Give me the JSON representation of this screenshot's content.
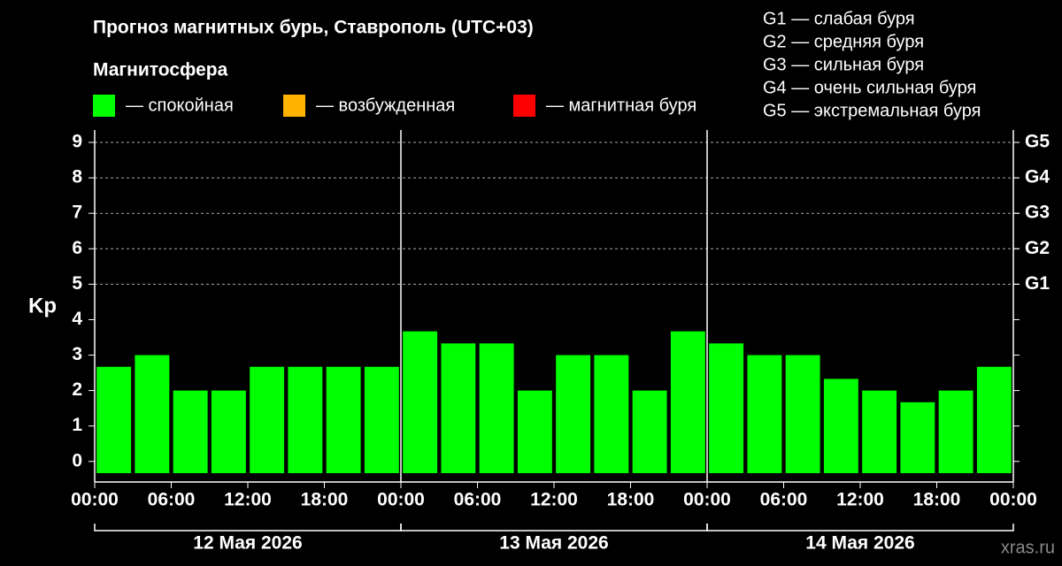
{
  "chart_data": {
    "type": "bar",
    "title": "Прогноз магнитных бурь, Ставрополь (UTC+03)",
    "subtitle": "Магнитосфера",
    "legend": [
      {
        "label": "— спокойная",
        "color": "#00ff00"
      },
      {
        "label": "— возбужденная",
        "color": "#ffb300"
      },
      {
        "label": "— магнитная буря",
        "color": "#ff0000"
      }
    ],
    "storm_levels": [
      "G1 — слабая буря",
      "G2 — средняя буря",
      "G3 — сильная буря",
      "G4 — очень сильная буря",
      "G5 — экстремальная буря"
    ],
    "ylabel": "Kp",
    "x": [
      1.5,
      4.5,
      7.5,
      10.5,
      13.5,
      16.5,
      19.5,
      22.5,
      25.5,
      28.5,
      31.5,
      34.5,
      37.5,
      40.5,
      43.5,
      46.5,
      49.5,
      52.5,
      55.5,
      58.5,
      61.5,
      64.5,
      67.5,
      70.5
    ],
    "values": [
      2.67,
      3,
      2,
      2,
      2.67,
      2.67,
      2.67,
      2.67,
      3.67,
      3.33,
      3.33,
      2,
      3,
      3,
      2,
      3.67,
      3.33,
      3,
      3,
      2.33,
      2,
      1.67,
      2,
      2.67
    ],
    "color": "#00ff00",
    "xlim": [
      0,
      72
    ],
    "xticks": [
      {
        "value": 0,
        "label": "00:00"
      },
      {
        "value": 6,
        "label": "06:00"
      },
      {
        "value": 12,
        "label": "12:00"
      },
      {
        "value": 18,
        "label": "18:00"
      },
      {
        "value": 24,
        "label": "00:00"
      },
      {
        "value": 30,
        "label": "06:00"
      },
      {
        "value": 36,
        "label": "12:00"
      },
      {
        "value": 42,
        "label": "18:00"
      },
      {
        "value": 48,
        "label": "00:00"
      },
      {
        "value": 54,
        "label": "06:00"
      },
      {
        "value": 60,
        "label": "12:00"
      },
      {
        "value": 66,
        "label": "18:00"
      },
      {
        "value": 72,
        "label": "00:00"
      }
    ],
    "ylim": [
      -0.33,
      9.35
    ],
    "yticks": [
      0,
      1,
      2,
      3,
      4,
      5,
      6,
      7,
      8,
      9
    ],
    "y2lim": [
      -0.33,
      9.35
    ],
    "y2ticks": [
      {
        "value": 5,
        "label": "G1"
      },
      {
        "value": 6,
        "label": "G2"
      },
      {
        "value": 7,
        "label": "G3"
      },
      {
        "value": 8,
        "label": "G4"
      },
      {
        "value": 9,
        "label": "G5"
      }
    ],
    "grid": true,
    "days": [
      {
        "label": "12 Мая 2026",
        "start": 0,
        "end": 24
      },
      {
        "label": "13 Мая 2026",
        "start": 24,
        "end": 48
      },
      {
        "label": "14 Мая 2026",
        "start": 48,
        "end": 72
      }
    ],
    "watermark": "xras.ru"
  }
}
